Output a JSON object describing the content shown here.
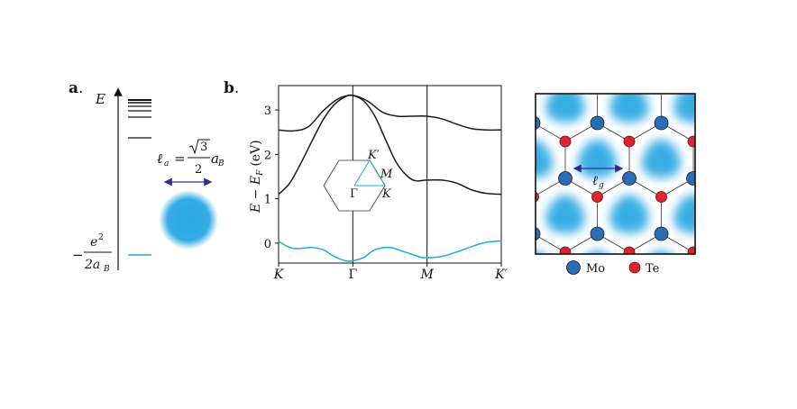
{
  "panels": {
    "a_label": "a",
    "b_label": "b"
  },
  "panel_a": {
    "energy_axis_label": "E",
    "ground_state_label": {
      "prefix": "−",
      "numerator": "e",
      "numerator_sup": "2",
      "denominator": "2a",
      "denominator_sub": "B"
    },
    "length_label": {
      "lhs": "ℓ",
      "lhs_sub": "a",
      "equals": "=",
      "sqrt_arg": "3",
      "frac_den": "2",
      "rhs": "a",
      "rhs_sub": "B"
    },
    "colors": {
      "ground_state": "#1eaadc",
      "orbital": "#2aa7e2",
      "arrow": "#2b2f8f"
    }
  },
  "chart_data": {
    "type": "line",
    "xlabel": "",
    "ylabel": "E − E_F (eV)",
    "ylabel_parts": {
      "main": "E − E",
      "sub": "F",
      "unit": "(eV)"
    },
    "x_ticks": [
      "K",
      "Γ",
      "M",
      "K′"
    ],
    "x_tick_positions": [
      0,
      1,
      2,
      3
    ],
    "xlim": [
      0,
      3
    ],
    "y_ticks": [
      "0",
      "1",
      "2",
      "3"
    ],
    "y_tick_values": [
      0,
      1,
      2,
      3
    ],
    "ylim": [
      -0.45,
      3.55
    ],
    "series": [
      {
        "color": "#1a1a1a",
        "x": [
          0,
          0.2,
          0.4,
          0.6,
          0.8,
          1.0,
          1.2,
          1.4,
          1.6,
          1.8,
          2.0,
          2.2,
          2.4,
          2.6,
          2.8,
          3.0
        ],
        "y": [
          2.55,
          2.53,
          2.62,
          2.98,
          3.25,
          3.33,
          3.2,
          2.95,
          2.86,
          2.86,
          2.86,
          2.8,
          2.68,
          2.58,
          2.55,
          2.55
        ]
      },
      {
        "color": "#1a1a1a",
        "x": [
          0,
          0.15,
          0.3,
          0.45,
          0.6,
          0.75,
          0.9,
          1.0,
          1.15,
          1.3,
          1.45,
          1.6,
          1.8,
          2.0,
          2.2,
          2.4,
          2.6,
          2.8,
          3.0
        ],
        "y": [
          1.1,
          1.35,
          1.8,
          2.3,
          2.78,
          3.12,
          3.3,
          3.33,
          3.2,
          2.85,
          2.3,
          1.78,
          1.43,
          1.42,
          1.42,
          1.35,
          1.2,
          1.12,
          1.1
        ]
      },
      {
        "color": "#1eaadc",
        "x": [
          0,
          0.1,
          0.2,
          0.3,
          0.45,
          0.6,
          0.75,
          0.9,
          1.0,
          1.15,
          1.3,
          1.5,
          1.7,
          1.9,
          2.0,
          2.2,
          2.4,
          2.6,
          2.8,
          3.0
        ],
        "y": [
          0.04,
          -0.06,
          -0.12,
          -0.12,
          -0.1,
          -0.15,
          -0.3,
          -0.4,
          -0.4,
          -0.32,
          -0.15,
          -0.1,
          -0.2,
          -0.31,
          -0.33,
          -0.3,
          -0.2,
          -0.08,
          0.02,
          0.05
        ]
      }
    ],
    "grid": "vertical lines at Γ and M",
    "inset": {
      "labels": {
        "gamma": "Γ",
        "k": "K",
        "k_prime": "K′",
        "m": "M"
      },
      "path_color": "#1eaadc"
    }
  },
  "lattice": {
    "legend": [
      {
        "label": "Mo",
        "color": "#2a6db5"
      },
      {
        "label": "Te",
        "color": "#e0242f"
      }
    ],
    "length_label": {
      "symbol": "ℓ",
      "sub": "g"
    },
    "density_color": "#2aa7e2",
    "arrow_color": "#2b2f8f"
  }
}
